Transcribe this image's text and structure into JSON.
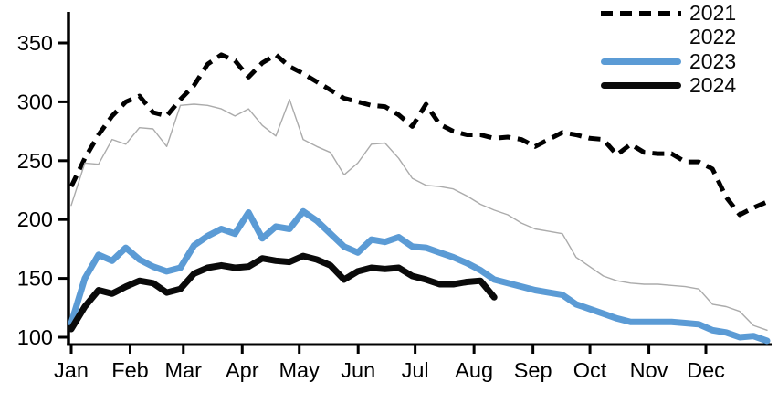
{
  "chart_data": {
    "type": "line",
    "title": "",
    "xlabel": "",
    "ylabel": "",
    "x_axis": {
      "tick_labels": [
        "Jan",
        "Feb",
        "Mar",
        "Apr",
        "May",
        "Jun",
        "Jul",
        "Aug",
        "Sep",
        "Oct",
        "Nov",
        "Dec"
      ]
    },
    "y_axis": {
      "ticks": [
        100,
        150,
        200,
        250,
        300,
        350
      ],
      "range": [
        100,
        350
      ],
      "grid": false
    },
    "legend_position": "top-right",
    "point_interval": "weekly",
    "series": [
      {
        "name": "2021",
        "style": "dashed",
        "color": "#000000",
        "width": 5,
        "values": [
          228,
          252,
          272,
          288,
          300,
          305,
          291,
          288,
          302,
          314,
          332,
          340,
          335,
          321,
          333,
          340,
          330,
          324,
          317,
          310,
          303,
          300,
          297,
          296,
          289,
          279,
          298,
          281,
          275,
          272,
          272,
          269,
          270,
          268,
          262,
          268,
          274,
          272,
          269,
          268,
          255,
          264,
          257,
          256,
          256,
          249,
          249,
          243,
          219,
          204,
          210,
          215
        ]
      },
      {
        "name": "2022",
        "style": "solid",
        "color": "#ababab",
        "width": 1.4,
        "values": [
          212,
          248,
          247,
          268,
          264,
          278,
          277,
          262,
          297,
          298,
          297,
          294,
          288,
          294,
          280,
          271,
          302,
          268,
          262,
          257,
          238,
          248,
          264,
          265,
          252,
          235,
          229,
          228,
          226,
          220,
          213,
          208,
          204,
          197,
          192,
          190,
          188,
          168,
          160,
          152,
          148,
          146,
          145,
          145,
          144,
          143,
          141,
          128,
          126,
          122,
          110,
          106
        ]
      },
      {
        "name": "2023",
        "style": "solid",
        "color": "#5b9bd5",
        "width": 7,
        "values": [
          112,
          150,
          170,
          165,
          176,
          166,
          160,
          156,
          159,
          178,
          186,
          192,
          188,
          206,
          184,
          194,
          192,
          207,
          199,
          188,
          177,
          172,
          183,
          181,
          185,
          177,
          176,
          172,
          168,
          163,
          157,
          149,
          146,
          143,
          140,
          138,
          136,
          128,
          124,
          120,
          116,
          113,
          113,
          113,
          113,
          112,
          111,
          106,
          104,
          100,
          101,
          97
        ]
      },
      {
        "name": "2024",
        "style": "solid",
        "color": "#0a0a0a",
        "width": 7,
        "values": [
          107,
          126,
          140,
          137,
          143,
          148,
          146,
          138,
          141,
          154,
          159,
          161,
          159,
          160,
          167,
          165,
          164,
          169,
          166,
          161,
          149,
          156,
          159,
          158,
          159,
          152,
          149,
          145,
          145,
          147,
          148,
          134
        ]
      }
    ]
  }
}
